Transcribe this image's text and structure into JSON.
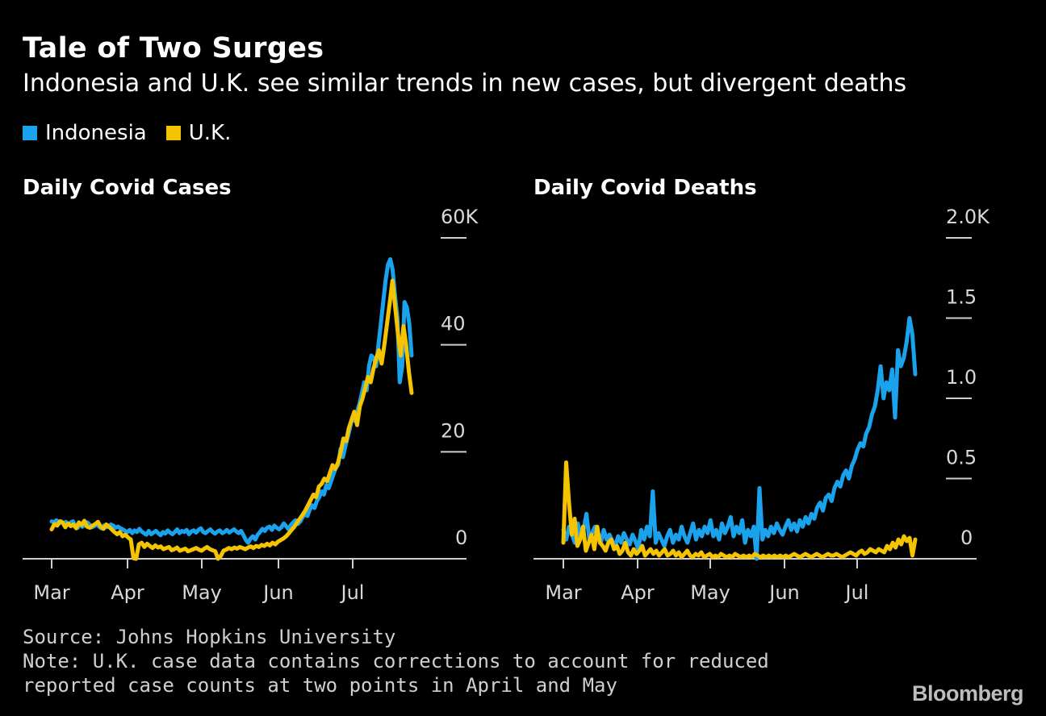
{
  "header": {
    "title": "Tale of Two Surges",
    "subtitle": "Indonesia and U.K. see similar trends in new cases, but divergent deaths"
  },
  "legend": [
    {
      "label": "Indonesia",
      "color": "#1aa3ec"
    },
    {
      "label": "U.K.",
      "color": "#f5c400"
    }
  ],
  "footer": {
    "source": "Source: Johns Hopkins University",
    "note": "Note: U.K. case data contains corrections to account for reduced reported case counts at two points in April and May",
    "brand": "Bloomberg"
  },
  "chart_data": [
    {
      "type": "line",
      "title": "Daily Covid Cases",
      "x_ticks": [
        "Mar",
        "Apr",
        "May",
        "Jun",
        "Jul"
      ],
      "y_ticks": [
        "0",
        "20",
        "40",
        "60K"
      ],
      "ylim": [
        0,
        60
      ],
      "y_unit": "K",
      "y_axis_position": "right",
      "series": [
        {
          "name": "Indonesia",
          "color": "#1aa3ec",
          "values": [
            7.0,
            6.8,
            7.2,
            6.5,
            7.0,
            6.6,
            6.9,
            6.4,
            6.8,
            7.0,
            6.2,
            5.8,
            6.5,
            6.0,
            6.3,
            6.8,
            6.4,
            5.9,
            6.1,
            6.5,
            6.0,
            5.7,
            6.2,
            5.9,
            6.0,
            6.4,
            6.2,
            5.8,
            6.0,
            5.7,
            5.5,
            5.2,
            5.0,
            5.4,
            4.8,
            5.3,
            5.0,
            5.6,
            5.1,
            4.8,
            4.5,
            5.2,
            4.6,
            4.9,
            5.2,
            4.8,
            4.4,
            5.0,
            4.7,
            5.3,
            4.9,
            4.6,
            5.0,
            5.5,
            4.8,
            5.2,
            5.0,
            5.4,
            4.6,
            5.1,
            5.3,
            4.9,
            5.4,
            5.7,
            5.0,
            4.8,
            5.2,
            5.5,
            5.0,
            4.7,
            5.1,
            5.3,
            4.8,
            5.0,
            5.4,
            4.9,
            5.2,
            5.5,
            5.1,
            4.8,
            5.2,
            4.4,
            3.5,
            3.0,
            3.8,
            4.2,
            3.6,
            4.5,
            5.0,
            5.6,
            5.2,
            5.8,
            6.0,
            5.4,
            6.2,
            5.8,
            5.5,
            5.9,
            6.6,
            6.1,
            5.5,
            6.3,
            6.8,
            7.2,
            6.5,
            7.0,
            7.8,
            8.4,
            8.0,
            9.2,
            10.0,
            9.5,
            10.8,
            11.5,
            12.6,
            12.0,
            13.8,
            13.2,
            14.5,
            15.8,
            17.0,
            17.6,
            20.6,
            19.0,
            21.0,
            22.7,
            24.5,
            26.5,
            25.8,
            27.5,
            29.0,
            31.0,
            33.0,
            31.5,
            36.0,
            38.0,
            37.5,
            36.0,
            40.0,
            44.0,
            48.0,
            52.0,
            55.0,
            56.0,
            54.0,
            49.0,
            45.0,
            33.0,
            36.0,
            48.0,
            47.0,
            44.0,
            38.0
          ]
        },
        {
          "name": "U.K.",
          "color": "#f5c400",
          "values": [
            5.5,
            6.5,
            6.2,
            7.0,
            6.8,
            5.9,
            6.6,
            6.1,
            6.4,
            5.7,
            6.8,
            6.3,
            7.1,
            6.0,
            5.8,
            6.2,
            6.5,
            6.9,
            6.0,
            5.6,
            6.4,
            6.0,
            5.5,
            5.0,
            4.6,
            5.0,
            4.2,
            4.5,
            4.0,
            3.6,
            0.1,
            0.0,
            2.7,
            3.0,
            2.2,
            2.8,
            2.4,
            2.0,
            2.5,
            2.1,
            2.3,
            1.8,
            2.0,
            2.2,
            1.6,
            1.8,
            2.1,
            1.5,
            1.7,
            1.9,
            1.4,
            1.6,
            1.8,
            2.0,
            1.7,
            1.5,
            1.9,
            2.2,
            1.8,
            1.6,
            1.4,
            0.0,
            0.5,
            1.5,
            1.7,
            2.0,
            1.8,
            2.1,
            1.9,
            2.2,
            2.0,
            1.8,
            2.1,
            2.3,
            2.0,
            2.4,
            2.2,
            2.6,
            2.4,
            2.8,
            2.5,
            3.0,
            2.7,
            3.2,
            3.5,
            3.8,
            4.2,
            4.8,
            5.4,
            6.0,
            6.8,
            7.5,
            8.2,
            9.0,
            10.0,
            11.0,
            12.0,
            11.5,
            13.5,
            14.0,
            15.0,
            14.5,
            16.0,
            17.5,
            16.8,
            18.0,
            20.0,
            22.5,
            22.0,
            24.5,
            26.0,
            27.5,
            25.0,
            28.5,
            30.0,
            32.0,
            34.0,
            33.0,
            35.5,
            37.5,
            39.0,
            36.5,
            40.0,
            44.0,
            48.0,
            52.0,
            47.0,
            42.0,
            38.0,
            43.5,
            40.0,
            35.0,
            31.0
          ]
        }
      ]
    },
    {
      "type": "line",
      "title": "Daily Covid Deaths",
      "x_ticks": [
        "Mar",
        "Apr",
        "May",
        "Jun",
        "Jul"
      ],
      "y_ticks": [
        "0",
        "0.5",
        "1.0",
        "1.5",
        "2.0K"
      ],
      "ylim": [
        0,
        2.0
      ],
      "y_unit": "K",
      "y_axis_position": "right",
      "series": [
        {
          "name": "Indonesia",
          "color": "#1aa3ec",
          "values": [
            0.18,
            0.12,
            0.2,
            0.15,
            0.1,
            0.22,
            0.14,
            0.18,
            0.28,
            0.12,
            0.16,
            0.2,
            0.14,
            0.1,
            0.18,
            0.12,
            0.15,
            0.11,
            0.08,
            0.14,
            0.1,
            0.16,
            0.12,
            0.09,
            0.15,
            0.11,
            0.06,
            0.18,
            0.12,
            0.2,
            0.14,
            0.42,
            0.1,
            0.16,
            0.12,
            0.08,
            0.14,
            0.18,
            0.1,
            0.15,
            0.12,
            0.2,
            0.14,
            0.1,
            0.16,
            0.22,
            0.12,
            0.18,
            0.14,
            0.2,
            0.16,
            0.24,
            0.14,
            0.18,
            0.12,
            0.22,
            0.16,
            0.2,
            0.26,
            0.14,
            0.2,
            0.16,
            0.24,
            0.1,
            0.18,
            0.14,
            0.2,
            0.0,
            0.44,
            0.12,
            0.18,
            0.14,
            0.2,
            0.16,
            0.22,
            0.18,
            0.15,
            0.2,
            0.24,
            0.18,
            0.22,
            0.17,
            0.24,
            0.2,
            0.26,
            0.22,
            0.28,
            0.25,
            0.32,
            0.35,
            0.3,
            0.38,
            0.4,
            0.36,
            0.44,
            0.48,
            0.45,
            0.52,
            0.55,
            0.5,
            0.58,
            0.62,
            0.68,
            0.72,
            0.7,
            0.78,
            0.82,
            0.9,
            0.95,
            1.05,
            1.2,
            1.0,
            1.1,
            1.05,
            1.18,
            0.88,
            1.3,
            1.2,
            1.25,
            1.35,
            1.5,
            1.4,
            1.15
          ]
        },
        {
          "name": "U.K.",
          "color": "#f5c400",
          "values": [
            0.1,
            0.6,
            0.35,
            0.15,
            0.25,
            0.08,
            0.12,
            0.2,
            0.05,
            0.1,
            0.15,
            0.06,
            0.2,
            0.1,
            0.08,
            0.05,
            0.1,
            0.12,
            0.06,
            0.08,
            0.03,
            0.05,
            0.1,
            0.04,
            0.02,
            0.06,
            0.03,
            0.05,
            0.08,
            0.02,
            0.04,
            0.06,
            0.03,
            0.05,
            0.02,
            0.04,
            0.06,
            0.02,
            0.03,
            0.05,
            0.02,
            0.04,
            0.01,
            0.03,
            0.05,
            0.02,
            0.01,
            0.03,
            0.02,
            0.04,
            0.01,
            0.02,
            0.03,
            0.01,
            0.02,
            0.01,
            0.03,
            0.02,
            0.01,
            0.02,
            0.01,
            0.03,
            0.02,
            0.01,
            0.02,
            0.01,
            0.02,
            0.01,
            0.03,
            0.02,
            0.01,
            0.02,
            0.01,
            0.02,
            0.01,
            0.02,
            0.01,
            0.02,
            0.01,
            0.02,
            0.01,
            0.02,
            0.03,
            0.02,
            0.01,
            0.02,
            0.03,
            0.02,
            0.01,
            0.02,
            0.03,
            0.02,
            0.01,
            0.02,
            0.03,
            0.02,
            0.02,
            0.03,
            0.02,
            0.01,
            0.02,
            0.03,
            0.04,
            0.03,
            0.02,
            0.04,
            0.05,
            0.03,
            0.04,
            0.06,
            0.05,
            0.04,
            0.06,
            0.05,
            0.04,
            0.08,
            0.06,
            0.1,
            0.07,
            0.12,
            0.09,
            0.14,
            0.11,
            0.13,
            0.02,
            0.12
          ]
        }
      ]
    }
  ]
}
